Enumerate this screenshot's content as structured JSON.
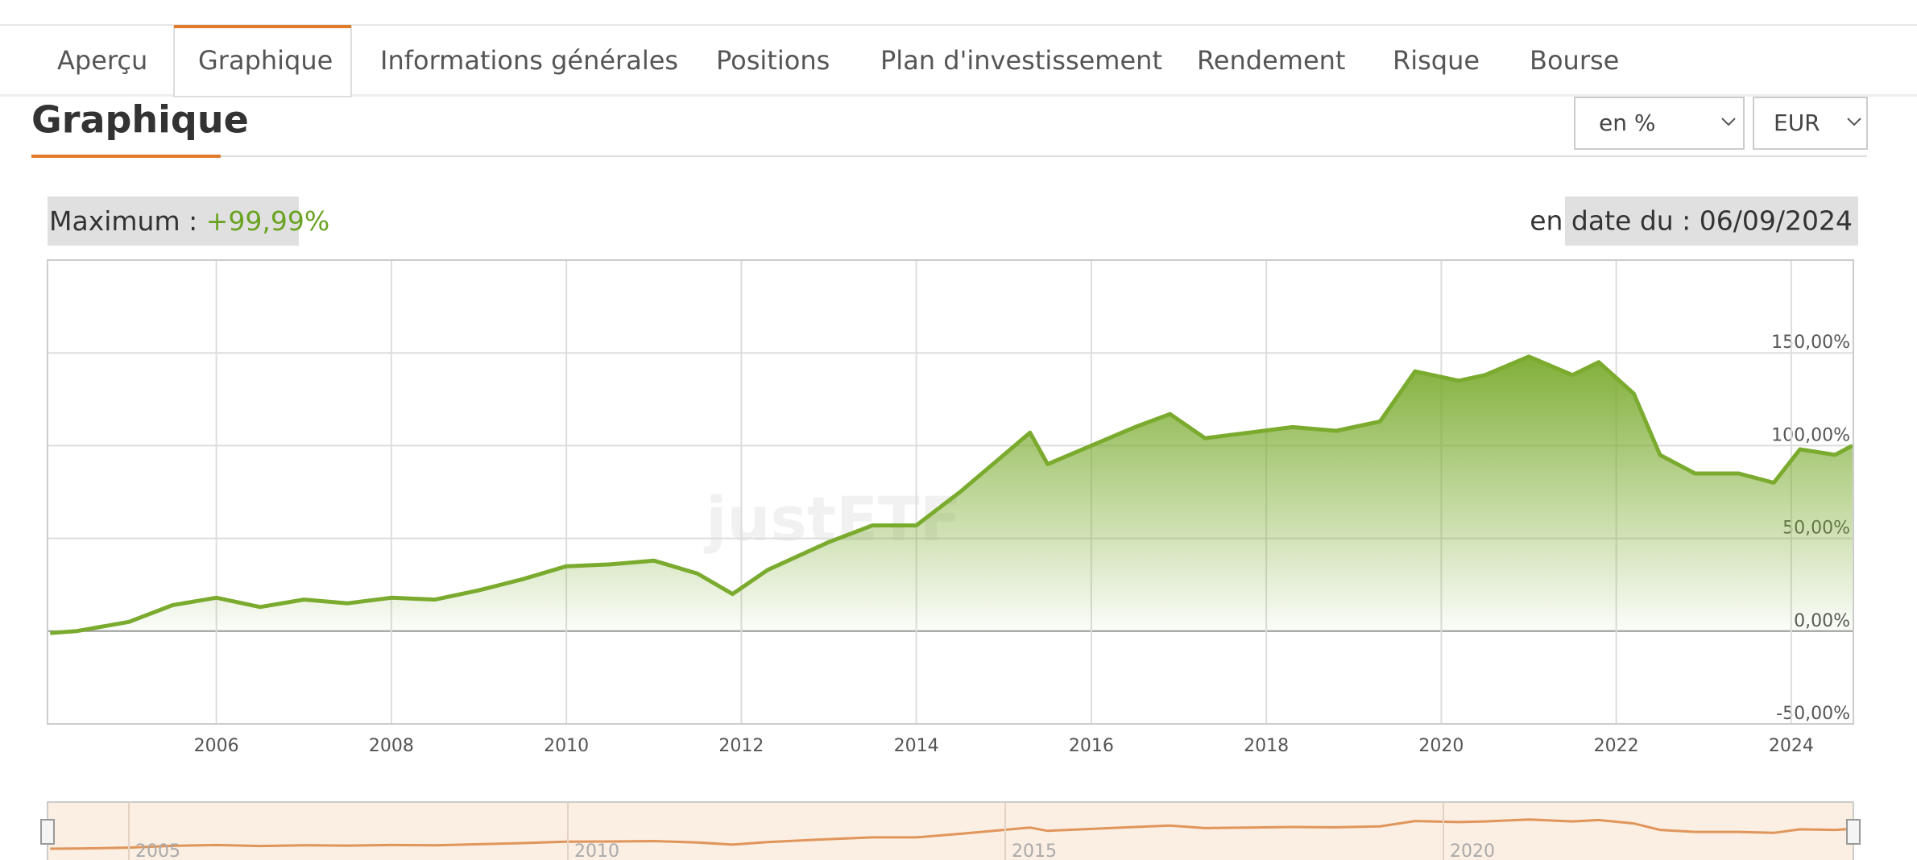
{
  "tabs": [
    "Aperçu",
    "Graphique",
    "Informations générales",
    "Positions",
    "Plan d'investissement",
    "Rendement",
    "Risque",
    "Bourse"
  ],
  "heading": "Graphique",
  "selects": [
    "en %",
    "EUR"
  ],
  "watermark": "justETF",
  "navigator": {
    "labels": [
      "2005",
      "2010",
      "2015",
      "2020"
    ]
  },
  "chart_data": {
    "type": "area",
    "max_label": "Maximum : ",
    "max_value": "+99,99%",
    "date_label": "en date du : 06/09/2024",
    "color": "#7aab2e",
    "grid": true,
    "x": [
      2004.1,
      2004.4,
      2005.0,
      2005.5,
      2006.0,
      2006.5,
      2007.0,
      2007.5,
      2008.0,
      2008.5,
      2009.0,
      2009.5,
      2010.0,
      2010.5,
      2011.0,
      2011.5,
      2011.9,
      2012.3,
      2013.0,
      2013.5,
      2014.0,
      2014.5,
      2015.0,
      2015.3,
      2015.5,
      2016.0,
      2016.5,
      2016.9,
      2017.3,
      2017.8,
      2018.3,
      2018.8,
      2019.3,
      2019.7,
      2020.2,
      2020.5,
      2021.0,
      2021.5,
      2021.8,
      2022.2,
      2022.5,
      2022.9,
      2023.4,
      2023.8,
      2024.1,
      2024.5,
      2024.7
    ],
    "values": [
      -1,
      0,
      5,
      14,
      18,
      13,
      17,
      15,
      18,
      17,
      22,
      28,
      35,
      36,
      38,
      31,
      20,
      33,
      48,
      57,
      57,
      75,
      95,
      107,
      90,
      100,
      110,
      117,
      104,
      107,
      110,
      108,
      113,
      140,
      135,
      138,
      148,
      138,
      145,
      128,
      95,
      85,
      85,
      80,
      98,
      95,
      100
    ],
    "xlim": [
      2004.07,
      2024.71
    ],
    "ylim": [
      -50,
      200
    ],
    "xticks": [
      2006,
      2008,
      2010,
      2012,
      2014,
      2016,
      2018,
      2020,
      2022,
      2024
    ],
    "yticks": [
      {
        "value": -50,
        "label": "-50,00%"
      },
      {
        "value": 0,
        "label": "0,00%"
      },
      {
        "value": 50,
        "label": "50,00%"
      },
      {
        "value": 100,
        "label": "100,00%"
      },
      {
        "value": 150,
        "label": "150,00%"
      }
    ]
  }
}
